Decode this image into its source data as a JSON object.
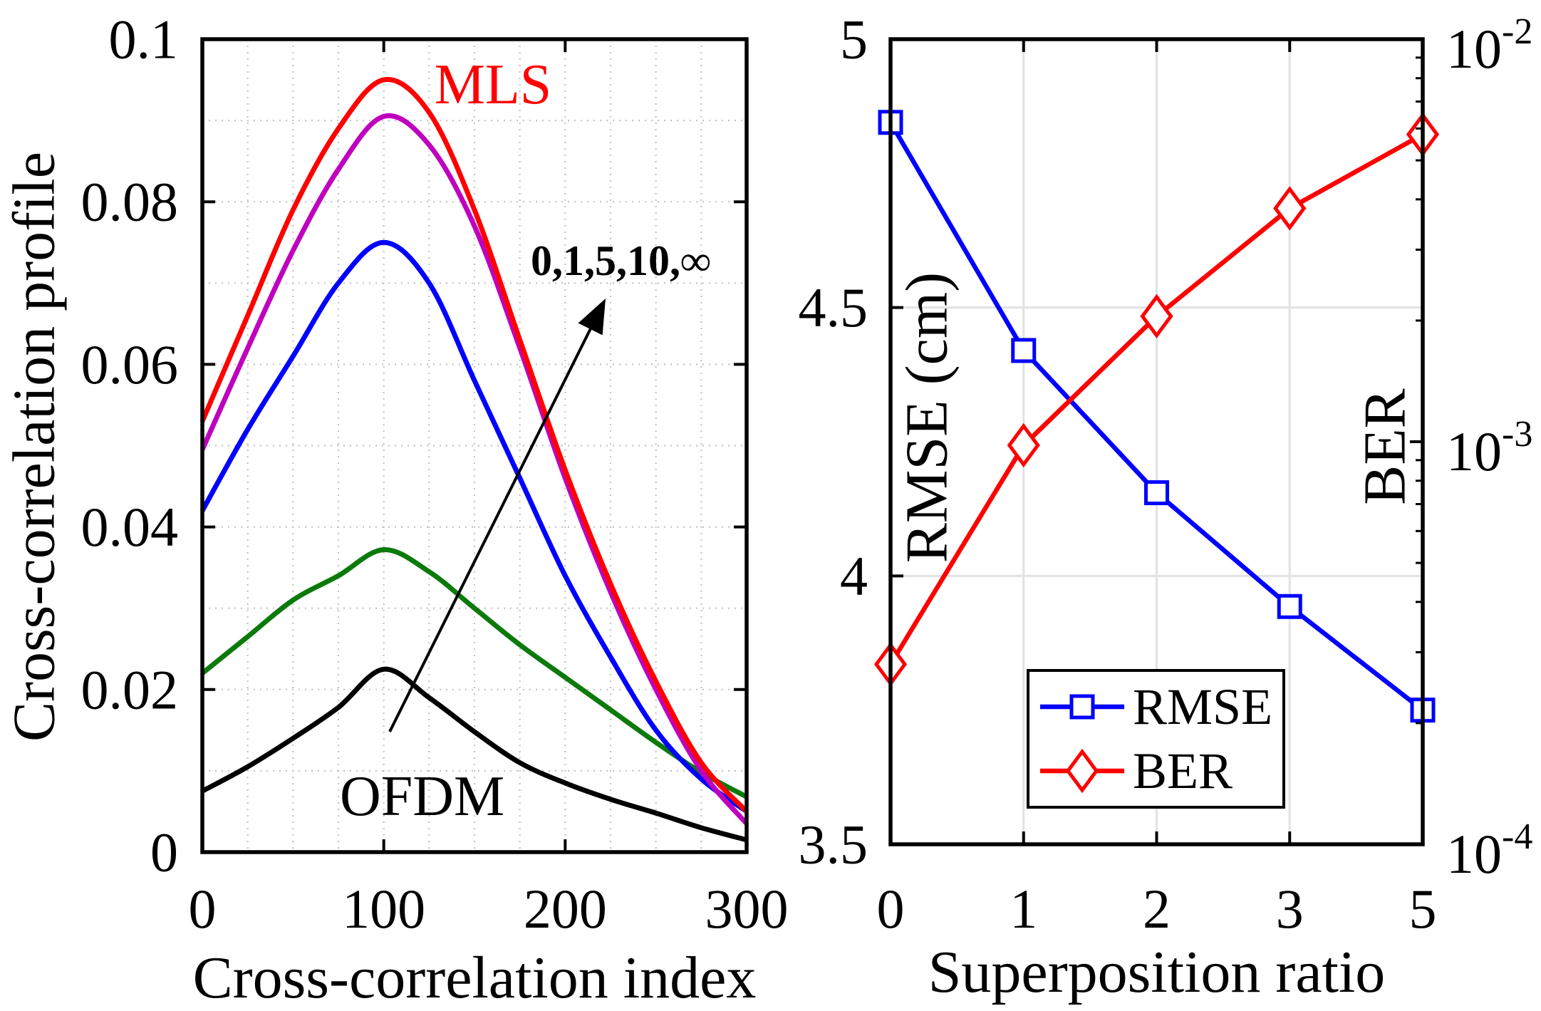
{
  "chart_data": [
    {
      "type": "line",
      "xlabel": "Cross-correlation index",
      "ylabel": "Cross-correlation profile",
      "xlim": [
        0,
        300
      ],
      "ylim": [
        0,
        0.1
      ],
      "xticks": [
        0,
        100,
        200,
        300
      ],
      "xtick_labels": [
        "0",
        "100",
        "200",
        "300"
      ],
      "yticks": [
        0,
        0.02,
        0.04,
        0.06,
        0.08,
        0.1
      ],
      "ytick_labels": [
        "0",
        "0.02",
        "0.04",
        "0.06",
        "0.08",
        "0.1"
      ],
      "grid": true,
      "x": [
        0,
        25,
        50,
        75,
        100,
        125,
        150,
        175,
        200,
        225,
        250,
        275,
        300
      ],
      "series": [
        {
          "color": "#000000",
          "values": [
            0.0075,
            0.0105,
            0.014,
            0.0178,
            0.0225,
            0.019,
            0.0148,
            0.011,
            0.0085,
            0.0065,
            0.0048,
            0.003,
            0.0015
          ]
        },
        {
          "color": "#0b7a0b",
          "values": [
            0.022,
            0.0265,
            0.031,
            0.034,
            0.0372,
            0.0345,
            0.03,
            0.0255,
            0.0215,
            0.0175,
            0.0135,
            0.0098,
            0.0068
          ]
        },
        {
          "color": "#0000ff",
          "values": [
            0.042,
            0.052,
            0.061,
            0.07,
            0.075,
            0.07,
            0.058,
            0.046,
            0.034,
            0.024,
            0.015,
            0.009,
            0.005
          ]
        },
        {
          "color": "#bf00bf",
          "values": [
            0.0495,
            0.062,
            0.074,
            0.084,
            0.0905,
            0.087,
            0.077,
            0.062,
            0.046,
            0.032,
            0.02,
            0.01,
            0.0035
          ]
        },
        {
          "color": "#ff0000",
          "values": [
            0.053,
            0.066,
            0.079,
            0.089,
            0.095,
            0.091,
            0.079,
            0.063,
            0.047,
            0.033,
            0.021,
            0.011,
            0.005
          ]
        }
      ],
      "annotations": {
        "mls_label": "MLS",
        "mls_color": "#ff0000",
        "arrow_label": "0,1,5,10,∞",
        "ofdm_label": "OFDM"
      }
    },
    {
      "type": "line",
      "xlabel": "Superposition ratio",
      "categories": [
        "0",
        "1",
        "2",
        "3",
        "5"
      ],
      "grid": true,
      "y_left": {
        "label": "RMSE (cm)",
        "lim": [
          3.5,
          5
        ],
        "ticks": [
          3.5,
          4,
          4.5,
          5
        ],
        "tick_labels": [
          "3.5",
          "4",
          "4.5",
          "5"
        ]
      },
      "y_right": {
        "label": "BER",
        "scale": "log",
        "lim": [
          0.0001,
          0.01
        ],
        "ticks": [
          0.0001,
          0.001,
          0.01
        ],
        "tick_labels": [
          {
            "base": "10",
            "exp": "-4"
          },
          {
            "base": "10",
            "exp": "-3"
          },
          {
            "base": "10",
            "exp": "-2"
          }
        ]
      },
      "series": [
        {
          "name": "RMSE",
          "axis": "left",
          "color": "#0000ff",
          "marker": "square",
          "values": [
            4.845,
            4.42,
            4.155,
            3.943,
            3.75
          ]
        },
        {
          "name": "BER",
          "axis": "right",
          "color": "#ff0000",
          "marker": "diamond",
          "values": [
            0.00028,
            0.00098,
            0.00205,
            0.0038,
            0.0058
          ]
        }
      ],
      "legend": {
        "position": "bottom-right"
      }
    }
  ]
}
